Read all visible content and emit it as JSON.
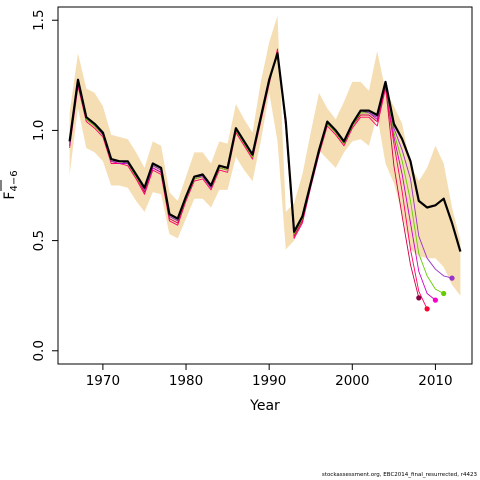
{
  "chart_data": {
    "type": "line",
    "xlabel": "Year",
    "ylabel": "F",
    "ylabel_subscript": "4−6",
    "xlim": [
      1964.6,
      2014.4
    ],
    "ylim": [
      -0.06,
      1.56
    ],
    "x_ticks": [
      1970,
      1980,
      1990,
      2000,
      2010
    ],
    "y_ticks": [
      0.0,
      0.5,
      1.0,
      1.5
    ],
    "y_tick_labels": [
      "0.0",
      "0.5",
      "1.0",
      "1.5"
    ],
    "grid": false,
    "legend": "none",
    "colors": {
      "band": "#f5deb3",
      "final": "#000000",
      "retro": [
        "#cc0044",
        "#ff0066",
        "#cc00cc",
        "#66cc00",
        "#9933cc"
      ],
      "endpoints": [
        "#880044",
        "#ff0033",
        "#ff00cc",
        "#66cc00",
        "#9933cc"
      ]
    },
    "band": {
      "x": [
        1966,
        1967,
        1968,
        1969,
        1970,
        1971,
        1972,
        1973,
        1974,
        1975,
        1976,
        1977,
        1978,
        1979,
        1980,
        1981,
        1982,
        1983,
        1984,
        1985,
        1986,
        1987,
        1988,
        1989,
        1990,
        1991,
        1992,
        1993,
        1994,
        1995,
        1996,
        1997,
        1998,
        1999,
        2000,
        2001,
        2002,
        2003,
        2004,
        2005,
        2006,
        2007,
        2008,
        2009,
        2010,
        2011,
        2012,
        2013
      ],
      "lower": [
        0.8,
        1.1,
        0.92,
        0.9,
        0.86,
        0.75,
        0.75,
        0.74,
        0.68,
        0.63,
        0.72,
        0.71,
        0.53,
        0.51,
        0.6,
        0.69,
        0.69,
        0.65,
        0.73,
        0.73,
        0.88,
        0.82,
        0.77,
        0.95,
        1.17,
        0.95,
        0.46,
        0.5,
        0.6,
        0.76,
        0.91,
        0.87,
        0.83,
        0.9,
        0.95,
        0.96,
        0.93,
        1.07,
        0.85,
        0.76,
        0.62,
        0.46,
        0.43,
        0.42,
        0.42,
        0.38,
        0.3,
        0.25
      ],
      "upper": [
        1.08,
        1.35,
        1.19,
        1.17,
        1.11,
        0.98,
        0.97,
        0.96,
        0.9,
        0.83,
        0.95,
        0.93,
        0.72,
        0.68,
        0.79,
        0.9,
        0.9,
        0.85,
        0.95,
        0.94,
        1.12,
        1.05,
        0.99,
        1.22,
        1.4,
        1.52,
        0.63,
        0.67,
        0.8,
        0.99,
        1.17,
        1.1,
        1.05,
        1.13,
        1.22,
        1.22,
        1.18,
        1.36,
        1.18,
        1.11,
        1.03,
        0.84,
        0.77,
        0.83,
        0.93,
        0.85,
        0.65,
        0.5
      ]
    },
    "series": [
      {
        "color": "#000000",
        "width": 2.2,
        "x": [
          1966,
          1967,
          1968,
          1969,
          1970,
          1971,
          1972,
          1973,
          1974,
          1975,
          1976,
          1977,
          1978,
          1979,
          1980,
          1981,
          1982,
          1983,
          1984,
          1985,
          1986,
          1987,
          1988,
          1989,
          1990,
          1991,
          1992,
          1993,
          1994,
          1995,
          1996,
          1997,
          1998,
          1999,
          2000,
          2001,
          2002,
          2003,
          2004,
          2005,
          2006,
          2007,
          2008,
          2009,
          2010,
          2011,
          2012,
          2013
        ],
        "y": [
          0.95,
          1.23,
          1.06,
          1.03,
          0.99,
          0.87,
          0.86,
          0.86,
          0.8,
          0.74,
          0.85,
          0.83,
          0.62,
          0.6,
          0.7,
          0.79,
          0.8,
          0.75,
          0.84,
          0.83,
          1.01,
          0.95,
          0.89,
          1.06,
          1.23,
          1.35,
          1.04,
          0.54,
          0.61,
          0.76,
          0.91,
          1.04,
          1.0,
          0.95,
          1.03,
          1.09,
          1.09,
          1.07,
          1.22,
          1.03,
          0.96,
          0.86,
          0.68,
          0.65,
          0.66,
          0.69,
          0.58,
          0.45
        ]
      },
      {
        "color": "#cc0044",
        "width": 0.9,
        "x": [
          1966,
          1967,
          1968,
          1969,
          1970,
          1971,
          1972,
          1973,
          1974,
          1975,
          1976,
          1977,
          1978,
          1979,
          1980,
          1981,
          1982,
          1983,
          1984,
          1985,
          1986,
          1987,
          1988,
          1989,
          1990,
          1991,
          1992,
          1993,
          1994,
          1995,
          1996,
          1997,
          1998,
          1999,
          2000,
          2001,
          2002,
          2003,
          2004,
          2005,
          2006,
          2007,
          2008
        ],
        "y": [
          0.93,
          1.21,
          1.05,
          1.02,
          0.98,
          0.86,
          0.85,
          0.85,
          0.79,
          0.72,
          0.83,
          0.81,
          0.6,
          0.58,
          0.69,
          0.78,
          0.79,
          0.74,
          0.83,
          0.82,
          1.0,
          0.94,
          0.88,
          1.05,
          1.22,
          1.36,
          1.02,
          0.52,
          0.59,
          0.75,
          0.9,
          1.03,
          0.99,
          0.94,
          1.02,
          1.07,
          1.07,
          1.04,
          1.2,
          0.84,
          0.61,
          0.39,
          0.24
        ]
      },
      {
        "color": "#ff0066",
        "width": 0.9,
        "x": [
          1966,
          1967,
          1968,
          1969,
          1970,
          1971,
          1972,
          1973,
          1974,
          1975,
          1976,
          1977,
          1978,
          1979,
          1980,
          1981,
          1982,
          1983,
          1984,
          1985,
          1986,
          1987,
          1988,
          1989,
          1990,
          1991,
          1992,
          1993,
          1994,
          1995,
          1996,
          1997,
          1998,
          1999,
          2000,
          2001,
          2002,
          2003,
          2004,
          2005,
          2006,
          2007,
          2008,
          2009
        ],
        "y": [
          0.92,
          1.2,
          1.04,
          1.01,
          0.97,
          0.85,
          0.85,
          0.84,
          0.78,
          0.71,
          0.82,
          0.8,
          0.59,
          0.57,
          0.68,
          0.77,
          0.78,
          0.73,
          0.82,
          0.81,
          0.99,
          0.93,
          0.87,
          1.04,
          1.21,
          1.37,
          1.01,
          0.51,
          0.58,
          0.74,
          0.89,
          1.02,
          0.98,
          0.93,
          1.01,
          1.06,
          1.06,
          1.02,
          1.19,
          0.94,
          0.72,
          0.46,
          0.27,
          0.19
        ]
      },
      {
        "color": "#cc00cc",
        "width": 0.9,
        "x": [
          1966,
          1967,
          1968,
          1969,
          1970,
          1971,
          1972,
          1973,
          1974,
          1975,
          1976,
          1977,
          1978,
          1979,
          1980,
          1981,
          1982,
          1983,
          1984,
          1985,
          1986,
          1987,
          1988,
          1989,
          1990,
          1991,
          1992,
          1993,
          1994,
          1995,
          1996,
          1997,
          1998,
          1999,
          2000,
          2001,
          2002,
          2003,
          2004,
          2005,
          2006,
          2007,
          2008,
          2009,
          2010
        ],
        "y": [
          0.93,
          1.21,
          1.05,
          1.02,
          0.98,
          0.86,
          0.85,
          0.85,
          0.79,
          0.73,
          0.83,
          0.81,
          0.61,
          0.59,
          0.69,
          0.78,
          0.79,
          0.74,
          0.83,
          0.82,
          1.0,
          0.94,
          0.88,
          1.05,
          1.22,
          1.36,
          1.03,
          0.53,
          0.6,
          0.75,
          0.9,
          1.03,
          0.99,
          0.94,
          1.02,
          1.08,
          1.08,
          1.05,
          1.21,
          0.97,
          0.8,
          0.58,
          0.36,
          0.26,
          0.23
        ]
      },
      {
        "color": "#66cc00",
        "width": 0.9,
        "x": [
          1966,
          1967,
          1968,
          1969,
          1970,
          1971,
          1972,
          1973,
          1974,
          1975,
          1976,
          1977,
          1978,
          1979,
          1980,
          1981,
          1982,
          1983,
          1984,
          1985,
          1986,
          1987,
          1988,
          1989,
          1990,
          1991,
          1992,
          1993,
          1994,
          1995,
          1996,
          1997,
          1998,
          1999,
          2000,
          2001,
          2002,
          2003,
          2004,
          2005,
          2006,
          2007,
          2008,
          2009,
          2010,
          2011
        ],
        "y": [
          0.94,
          1.22,
          1.05,
          1.02,
          0.98,
          0.86,
          0.86,
          0.85,
          0.79,
          0.73,
          0.84,
          0.82,
          0.61,
          0.59,
          0.69,
          0.78,
          0.79,
          0.74,
          0.83,
          0.82,
          1.0,
          0.94,
          0.88,
          1.05,
          1.22,
          1.35,
          1.03,
          0.53,
          0.6,
          0.75,
          0.9,
          1.03,
          0.99,
          0.94,
          1.02,
          1.08,
          1.08,
          1.06,
          1.21,
          0.99,
          0.86,
          0.68,
          0.44,
          0.34,
          0.28,
          0.26
        ]
      },
      {
        "color": "#9933cc",
        "width": 0.9,
        "x": [
          1966,
          1967,
          1968,
          1969,
          1970,
          1971,
          1972,
          1973,
          1974,
          1975,
          1976,
          1977,
          1978,
          1979,
          1980,
          1981,
          1982,
          1983,
          1984,
          1985,
          1986,
          1987,
          1988,
          1989,
          1990,
          1991,
          1992,
          1993,
          1994,
          1995,
          1996,
          1997,
          1998,
          1999,
          2000,
          2001,
          2002,
          2003,
          2004,
          2005,
          2006,
          2007,
          2008,
          2009,
          2010,
          2011,
          2012
        ],
        "y": [
          0.94,
          1.22,
          1.06,
          1.03,
          0.98,
          0.86,
          0.86,
          0.85,
          0.8,
          0.73,
          0.84,
          0.82,
          0.61,
          0.59,
          0.7,
          0.79,
          0.79,
          0.74,
          0.84,
          0.83,
          1.01,
          0.95,
          0.89,
          1.06,
          1.23,
          1.35,
          1.04,
          0.54,
          0.61,
          0.76,
          0.91,
          1.04,
          1.0,
          0.95,
          1.03,
          1.09,
          1.08,
          1.06,
          1.22,
          1.01,
          0.91,
          0.78,
          0.52,
          0.42,
          0.37,
          0.34,
          0.33
        ]
      }
    ],
    "endpoints": [
      {
        "x": 2008,
        "y": 0.24,
        "color": "#880044"
      },
      {
        "x": 2009,
        "y": 0.19,
        "color": "#ff0033"
      },
      {
        "x": 2010,
        "y": 0.23,
        "color": "#ff00cc"
      },
      {
        "x": 2011,
        "y": 0.26,
        "color": "#66cc00"
      },
      {
        "x": 2012,
        "y": 0.33,
        "color": "#9933cc"
      }
    ]
  },
  "footer": "stockassessment.org, EBC2014_final_resurrected, r4423"
}
